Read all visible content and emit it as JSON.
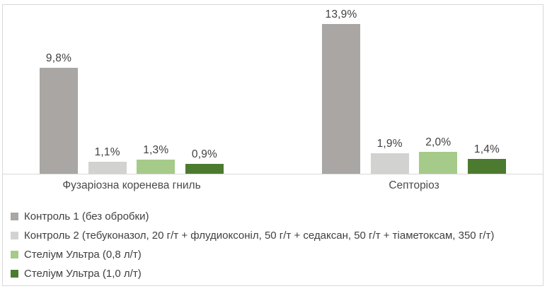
{
  "chart_data": {
    "type": "bar",
    "categories": [
      "Фузаріозна коренева гниль",
      "Септоріоз"
    ],
    "series": [
      {
        "name": "Контроль 1 (без обробки)",
        "color": "#a9a6a3",
        "values": [
          9.8,
          13.9
        ],
        "labels": [
          "9,8%",
          "13,9%"
        ]
      },
      {
        "name": "Контроль 2 (тебуконазол, 20 г/т + флудиоксоніл, 50 г/т + седаксан, 50 г/т + тіаметоксам, 350 г/т)",
        "color": "#d2d2d1",
        "values": [
          1.1,
          1.9
        ],
        "labels": [
          "1,1%",
          "1,9%"
        ]
      },
      {
        "name": "Стеліум Ультра (0,8 л/т)",
        "color": "#a5ca89",
        "values": [
          1.3,
          2.0
        ],
        "labels": [
          "1,3%",
          "2,0%"
        ]
      },
      {
        "name": "Стеліум Ультра (1,0 л/т)",
        "color": "#4c7b30",
        "values": [
          0.9,
          1.4
        ],
        "labels": [
          "0,9%",
          "1,4%"
        ]
      }
    ],
    "title": "",
    "xlabel": "",
    "ylabel": "",
    "ylim": [
      0,
      15.7
    ],
    "grid": false,
    "value_labels_shown": true,
    "legend_position": "bottom-left",
    "axis_line_color": "#d9d9d9",
    "frame_border_color": "#d8d8d8",
    "text_color": "#404040"
  }
}
